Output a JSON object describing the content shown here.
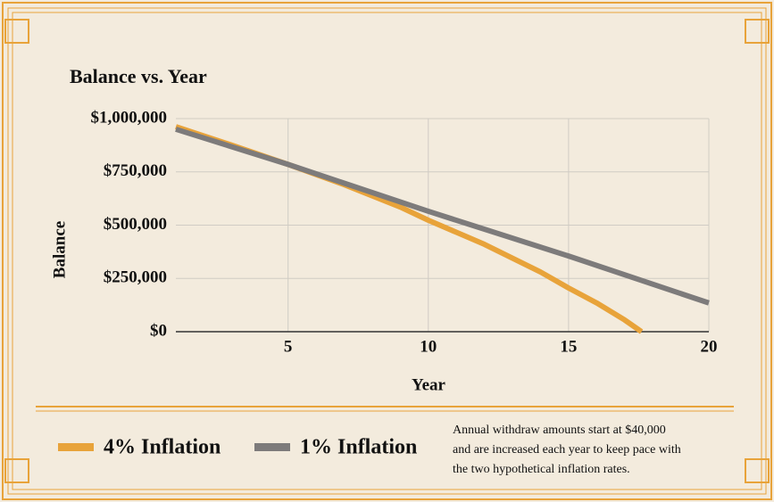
{
  "chart_data": {
    "type": "line",
    "title": "Balance vs. Year",
    "x_label": "Year",
    "y_label": "Balance",
    "xlim": [
      1,
      20
    ],
    "xticks": [
      5,
      10,
      15,
      20
    ],
    "ylim": [
      0,
      1000000
    ],
    "yticks": [
      {
        "value": 0,
        "label": "$0"
      },
      {
        "value": 250000,
        "label": "$250,000"
      },
      {
        "value": 500000,
        "label": "$500,000"
      },
      {
        "value": 750000,
        "label": "$750,000"
      },
      {
        "value": 1000000,
        "label": "$1,000,000"
      }
    ],
    "grid": true,
    "series": [
      {
        "name": "4% Inflation",
        "color": "#e8a33a",
        "x": [
          1,
          3,
          5,
          7,
          9,
          10,
          12,
          14,
          15,
          16,
          17,
          17.6
        ],
        "values": [
          962000,
          875000,
          785000,
          690000,
          585000,
          523000,
          410000,
          280000,
          205000,
          135000,
          55000,
          0
        ]
      },
      {
        "name": "1% Inflation",
        "color": "#7d7b7b",
        "x": [
          1,
          5,
          10,
          15,
          20
        ],
        "values": [
          950000,
          785000,
          565000,
          355000,
          135000
        ]
      }
    ],
    "note": [
      "Annual withdraw amounts start at $40,000",
      "and are increased each year to keep pace with",
      "the two hypothetical inflation rates."
    ]
  }
}
